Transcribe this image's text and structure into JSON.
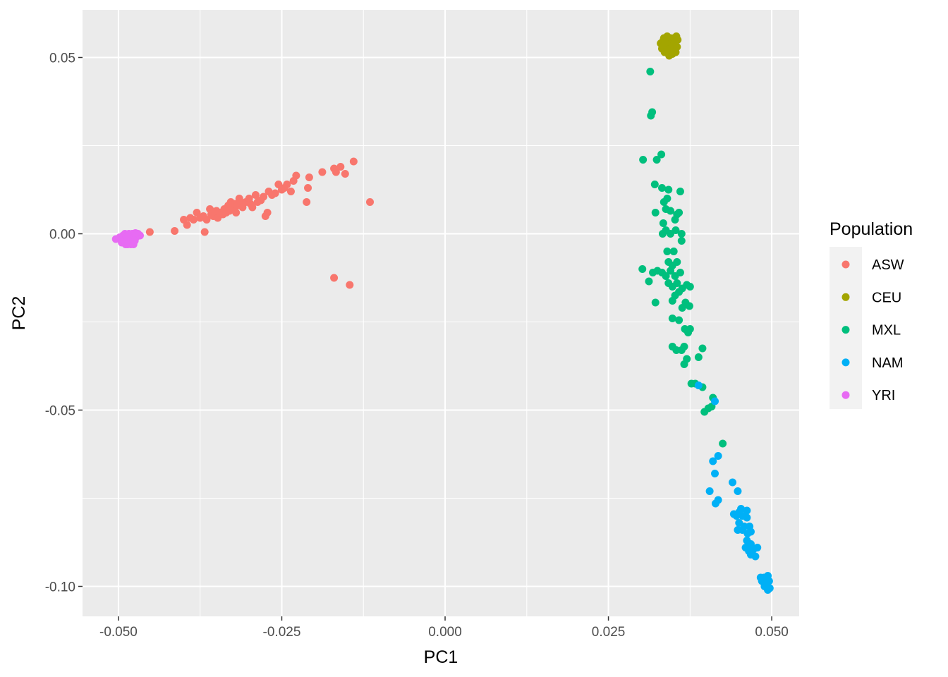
{
  "chart_data": {
    "type": "scatter",
    "xlabel": "PC1",
    "ylabel": "PC2",
    "xlim": [
      -0.0555,
      0.0542
    ],
    "ylim": [
      -0.1085,
      0.0635
    ],
    "x_ticks": [
      -0.05,
      -0.025,
      0.0,
      0.025,
      0.05
    ],
    "x_tick_labels": [
      "-0.050",
      "-0.025",
      "0.000",
      "0.025",
      "0.050"
    ],
    "y_ticks": [
      -0.1,
      -0.05,
      0.0,
      0.05
    ],
    "y_tick_labels": [
      "-0.10",
      "-0.05",
      "0.00",
      "0.05"
    ],
    "grid": true,
    "legend": {
      "title": "Population",
      "placement": "right"
    },
    "series": [
      {
        "name": "ASW",
        "color": "#F8766D",
        "points": [
          [
            -0.0452,
            0.0005
          ],
          [
            -0.0414,
            0.0008
          ],
          [
            -0.04,
            0.004
          ],
          [
            -0.0395,
            0.0025
          ],
          [
            -0.039,
            0.0045
          ],
          [
            -0.0385,
            0.004
          ],
          [
            -0.038,
            0.006
          ],
          [
            -0.0375,
            0.0045
          ],
          [
            -0.037,
            0.005
          ],
          [
            -0.0368,
            0.0005
          ],
          [
            -0.0365,
            0.004
          ],
          [
            -0.036,
            0.007
          ],
          [
            -0.0358,
            0.0055
          ],
          [
            -0.0355,
            0.005
          ],
          [
            -0.035,
            0.0065
          ],
          [
            -0.0348,
            0.0045
          ],
          [
            -0.0345,
            0.006
          ],
          [
            -0.034,
            0.0055
          ],
          [
            -0.0338,
            0.007
          ],
          [
            -0.0335,
            0.006
          ],
          [
            -0.0332,
            0.008
          ],
          [
            -0.033,
            0.0065
          ],
          [
            -0.0328,
            0.009
          ],
          [
            -0.0325,
            0.0075
          ],
          [
            -0.0322,
            0.0085
          ],
          [
            -0.032,
            0.006
          ],
          [
            -0.0318,
            0.008
          ],
          [
            -0.0315,
            0.01
          ],
          [
            -0.0312,
            0.0085
          ],
          [
            -0.031,
            0.0075
          ],
          [
            -0.0305,
            0.009
          ],
          [
            -0.03,
            0.01
          ],
          [
            -0.0298,
            0.0085
          ],
          [
            -0.0295,
            0.0075
          ],
          [
            -0.029,
            0.011
          ],
          [
            -0.0287,
            0.009
          ],
          [
            -0.0282,
            0.0095
          ],
          [
            -0.0278,
            0.0105
          ],
          [
            -0.0275,
            0.005
          ],
          [
            -0.0272,
            0.006
          ],
          [
            -0.027,
            0.012
          ],
          [
            -0.0265,
            0.011
          ],
          [
            -0.026,
            0.0115
          ],
          [
            -0.0255,
            0.014
          ],
          [
            -0.025,
            0.0125
          ],
          [
            -0.0246,
            0.013
          ],
          [
            -0.0242,
            0.014
          ],
          [
            -0.0236,
            0.012
          ],
          [
            -0.0232,
            0.015
          ],
          [
            -0.0228,
            0.0165
          ],
          [
            -0.0208,
            0.016
          ],
          [
            -0.021,
            0.013
          ],
          [
            -0.0212,
            0.009
          ],
          [
            -0.0188,
            0.0175
          ],
          [
            -0.017,
            0.0185
          ],
          [
            -0.0167,
            0.0175
          ],
          [
            -0.016,
            0.019
          ],
          [
            -0.0153,
            0.017
          ],
          [
            -0.014,
            0.0205
          ],
          [
            -0.0115,
            0.009
          ],
          [
            -0.017,
            -0.0125
          ],
          [
            -0.0146,
            -0.0145
          ]
        ]
      },
      {
        "name": "CEU",
        "color": "#A3A500",
        "points": [
          [
            0.033,
            0.054
          ],
          [
            0.0332,
            0.0525
          ],
          [
            0.0335,
            0.0555
          ],
          [
            0.0336,
            0.0515
          ],
          [
            0.0338,
            0.0535
          ],
          [
            0.034,
            0.056
          ],
          [
            0.0341,
            0.0525
          ],
          [
            0.0342,
            0.0545
          ],
          [
            0.0343,
            0.0505
          ],
          [
            0.0344,
            0.053
          ],
          [
            0.0345,
            0.0555
          ],
          [
            0.0346,
            0.052
          ],
          [
            0.0347,
            0.054
          ],
          [
            0.0348,
            0.051
          ],
          [
            0.0349,
            0.0535
          ],
          [
            0.035,
            0.0555
          ],
          [
            0.0351,
            0.0525
          ],
          [
            0.0352,
            0.0545
          ],
          [
            0.0353,
            0.0515
          ],
          [
            0.0354,
            0.056
          ],
          [
            0.0355,
            0.053
          ],
          [
            0.0356,
            0.055
          ],
          [
            0.0334,
            0.0548
          ],
          [
            0.0339,
            0.0518
          ],
          [
            0.0337,
            0.0542
          ]
        ]
      },
      {
        "name": "MXL",
        "color": "#00BF7D",
        "points": [
          [
            0.0314,
            0.046
          ],
          [
            0.0317,
            0.0345
          ],
          [
            0.0315,
            0.0335
          ],
          [
            0.0303,
            0.021
          ],
          [
            0.0324,
            0.021
          ],
          [
            0.0331,
            0.0225
          ],
          [
            0.0321,
            0.014
          ],
          [
            0.0332,
            0.013
          ],
          [
            0.0342,
            0.0125
          ],
          [
            0.036,
            0.012
          ],
          [
            0.034,
            0.01
          ],
          [
            0.0335,
            0.009
          ],
          [
            0.0338,
            0.007
          ],
          [
            0.0322,
            0.006
          ],
          [
            0.0345,
            0.0065
          ],
          [
            0.0355,
            0.0055
          ],
          [
            0.0358,
            0.006
          ],
          [
            0.0352,
            0.004
          ],
          [
            0.0334,
            0.003
          ],
          [
            0.0338,
            0.001
          ],
          [
            0.0345,
            0.0
          ],
          [
            0.0353,
            0.001
          ],
          [
            0.0362,
            0.0
          ],
          [
            0.0333,
            0.0
          ],
          [
            0.0362,
            -0.002
          ],
          [
            0.034,
            -0.005
          ],
          [
            0.035,
            -0.005
          ],
          [
            0.0302,
            -0.01
          ],
          [
            0.0318,
            -0.011
          ],
          [
            0.0325,
            -0.0105
          ],
          [
            0.0332,
            -0.011
          ],
          [
            0.0342,
            -0.008
          ],
          [
            0.0348,
            -0.009
          ],
          [
            0.0355,
            -0.008
          ],
          [
            0.0345,
            -0.0105
          ],
          [
            0.0338,
            -0.012
          ],
          [
            0.0352,
            -0.012
          ],
          [
            0.036,
            -0.011
          ],
          [
            0.0312,
            -0.0135
          ],
          [
            0.0342,
            -0.014
          ],
          [
            0.0348,
            -0.015
          ],
          [
            0.0355,
            -0.014
          ],
          [
            0.0363,
            -0.0155
          ],
          [
            0.037,
            -0.0145
          ],
          [
            0.0375,
            -0.015
          ],
          [
            0.0358,
            -0.0165
          ],
          [
            0.0352,
            -0.0175
          ],
          [
            0.0348,
            -0.019
          ],
          [
            0.0322,
            -0.0195
          ],
          [
            0.0368,
            -0.0195
          ],
          [
            0.0374,
            -0.0205
          ],
          [
            0.0363,
            -0.021
          ],
          [
            0.0348,
            -0.024
          ],
          [
            0.0358,
            -0.0245
          ],
          [
            0.0367,
            -0.027
          ],
          [
            0.0375,
            -0.027
          ],
          [
            0.0372,
            -0.028
          ],
          [
            0.0348,
            -0.032
          ],
          [
            0.0354,
            -0.033
          ],
          [
            0.0362,
            -0.033
          ],
          [
            0.0366,
            -0.032
          ],
          [
            0.037,
            -0.0355
          ],
          [
            0.0366,
            -0.037
          ],
          [
            0.0388,
            -0.035
          ],
          [
            0.0394,
            -0.0325
          ],
          [
            0.0377,
            -0.0425
          ],
          [
            0.0383,
            -0.0425
          ],
          [
            0.0394,
            -0.0435
          ],
          [
            0.041,
            -0.0465
          ],
          [
            0.0408,
            -0.049
          ],
          [
            0.0403,
            -0.0495
          ],
          [
            0.0397,
            -0.0505
          ],
          [
            0.0425,
            -0.0595
          ]
        ]
      },
      {
        "name": "NAM",
        "color": "#00B0F6",
        "points": [
          [
            0.0388,
            -0.043
          ],
          [
            0.0413,
            -0.0475
          ],
          [
            0.041,
            -0.0645
          ],
          [
            0.0418,
            -0.063
          ],
          [
            0.0413,
            -0.068
          ],
          [
            0.044,
            -0.0705
          ],
          [
            0.0405,
            -0.073
          ],
          [
            0.0448,
            -0.073
          ],
          [
            0.0418,
            -0.0755
          ],
          [
            0.0414,
            -0.0765
          ],
          [
            0.0453,
            -0.078
          ],
          [
            0.045,
            -0.079
          ],
          [
            0.0462,
            -0.0785
          ],
          [
            0.0442,
            -0.0795
          ],
          [
            0.0446,
            -0.08
          ],
          [
            0.0455,
            -0.08
          ],
          [
            0.0462,
            -0.0805
          ],
          [
            0.045,
            -0.082
          ],
          [
            0.0458,
            -0.083
          ],
          [
            0.0466,
            -0.083
          ],
          [
            0.0448,
            -0.084
          ],
          [
            0.0455,
            -0.084
          ],
          [
            0.0463,
            -0.085
          ],
          [
            0.0468,
            -0.0845
          ],
          [
            0.0462,
            -0.087
          ],
          [
            0.0468,
            -0.088
          ],
          [
            0.046,
            -0.089
          ],
          [
            0.0465,
            -0.09
          ],
          [
            0.0472,
            -0.0895
          ],
          [
            0.0478,
            -0.089
          ],
          [
            0.0468,
            -0.091
          ],
          [
            0.0475,
            -0.0915
          ],
          [
            0.0483,
            -0.0975
          ],
          [
            0.0488,
            -0.0975
          ],
          [
            0.049,
            -0.098
          ],
          [
            0.0494,
            -0.097
          ],
          [
            0.0485,
            -0.0985
          ],
          [
            0.0492,
            -0.0995
          ],
          [
            0.0489,
            -0.1
          ],
          [
            0.0494,
            -0.101
          ],
          [
            0.0497,
            -0.1005
          ],
          [
            0.0496,
            -0.0985
          ]
        ]
      },
      {
        "name": "YRI",
        "color": "#E76BF3",
        "points": [
          [
            -0.0504,
            -0.0015
          ],
          [
            -0.0498,
            -0.001
          ],
          [
            -0.0495,
            -0.0025
          ],
          [
            -0.0493,
            -0.0005
          ],
          [
            -0.0491,
            -0.002
          ],
          [
            -0.049,
            0.0
          ],
          [
            -0.0488,
            -0.0015
          ],
          [
            -0.0486,
            -0.003
          ],
          [
            -0.0485,
            -0.0005
          ],
          [
            -0.0484,
            0.0
          ],
          [
            -0.0483,
            -0.002
          ],
          [
            -0.0482,
            -0.001
          ],
          [
            -0.048,
            -0.0025
          ],
          [
            -0.0479,
            0.0
          ],
          [
            -0.0478,
            -0.0015
          ],
          [
            -0.0476,
            -0.0005
          ],
          [
            -0.0475,
            -0.002
          ],
          [
            -0.0473,
            -0.001
          ],
          [
            -0.047,
            0.0
          ],
          [
            -0.0467,
            -0.0005
          ],
          [
            -0.0489,
            -0.003
          ],
          [
            -0.0481,
            -0.003
          ],
          [
            -0.0477,
            -0.003
          ],
          [
            -0.0487,
            -0.0008
          ],
          [
            -0.0474,
            0.0002
          ]
        ]
      }
    ]
  }
}
